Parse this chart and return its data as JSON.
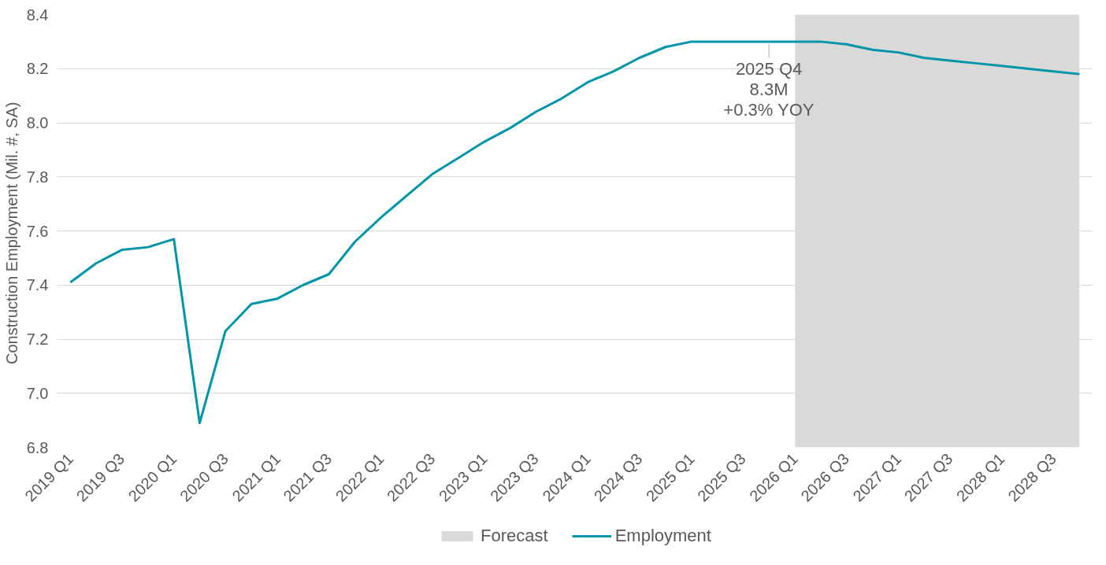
{
  "chart_data": {
    "type": "line",
    "ylabel": "Construction Employment  (Mil. #, SA)",
    "x": [
      "2019-01",
      "2019-04",
      "2019-07",
      "2019-10",
      "2020-01",
      "2020-04",
      "2020-07",
      "2020-10",
      "2021-01",
      "2021-04",
      "2021-07",
      "2021-10",
      "2022-01",
      "2022-04",
      "2022-07",
      "2022-10",
      "2023-01",
      "2023-04",
      "2023-07",
      "2023-10",
      "2024-01",
      "2024-04",
      "2024-07",
      "2024-10",
      "2025-01",
      "2025-04",
      "2025-07",
      "2025-10",
      "2026-01",
      "2026-04",
      "2026-07",
      "2026-10",
      "2027-01",
      "2027-04",
      "2027-07",
      "2027-10",
      "2028-01",
      "2028-04",
      "2028-07",
      "2028-10"
    ],
    "series": [
      {
        "name": "Employment",
        "color": "#0095a9",
        "values": [
          7.41,
          7.48,
          7.53,
          7.54,
          7.57,
          6.89,
          7.23,
          7.33,
          7.35,
          7.4,
          7.44,
          7.56,
          7.65,
          7.73,
          7.81,
          7.87,
          7.93,
          7.98,
          8.04,
          8.09,
          8.15,
          8.19,
          8.24,
          8.28,
          8.3,
          8.3,
          8.3,
          8.3,
          8.3,
          8.3,
          8.29,
          8.27,
          8.26,
          8.24,
          8.23,
          8.22,
          8.21,
          8.2,
          8.19,
          8.18
        ]
      }
    ],
    "xlim": [
      "2018-11-15",
      "2028-11-15"
    ],
    "xticks": [
      {
        "value": "2019-01",
        "label": "2019 Q1"
      },
      {
        "value": "2019-07",
        "label": "2019 Q3"
      },
      {
        "value": "2020-01",
        "label": "2020 Q1"
      },
      {
        "value": "2020-07",
        "label": "2020 Q3"
      },
      {
        "value": "2021-01",
        "label": "2021 Q1"
      },
      {
        "value": "2021-07",
        "label": "2021 Q3"
      },
      {
        "value": "2022-01",
        "label": "2022 Q1"
      },
      {
        "value": "2022-07",
        "label": "2022 Q3"
      },
      {
        "value": "2023-01",
        "label": "2023 Q1"
      },
      {
        "value": "2023-07",
        "label": "2023 Q3"
      },
      {
        "value": "2024-01",
        "label": "2024 Q1"
      },
      {
        "value": "2024-07",
        "label": "2024 Q3"
      },
      {
        "value": "2025-01",
        "label": "2025 Q1"
      },
      {
        "value": "2025-07",
        "label": "2025 Q3"
      },
      {
        "value": "2026-01",
        "label": "2026 Q1"
      },
      {
        "value": "2026-07",
        "label": "2026 Q3"
      },
      {
        "value": "2027-01",
        "label": "2027 Q1"
      },
      {
        "value": "2027-07",
        "label": "2027 Q3"
      },
      {
        "value": "2028-01",
        "label": "2028 Q1"
      },
      {
        "value": "2028-07",
        "label": "2028 Q3"
      }
    ],
    "ylim": [
      6.8,
      8.4
    ],
    "yticks": [
      {
        "value": 6.8,
        "label": "6.8"
      },
      {
        "value": 7.0,
        "label": "7.0"
      },
      {
        "value": 7.2,
        "label": "7.2"
      },
      {
        "value": 7.4,
        "label": "7.4"
      },
      {
        "value": 7.6,
        "label": "7.6"
      },
      {
        "value": 7.8,
        "label": "7.8"
      },
      {
        "value": 8.0,
        "label": "8.0"
      },
      {
        "value": 8.2,
        "label": "8.2"
      },
      {
        "value": 8.4,
        "label": "8.4"
      }
    ],
    "bands": [
      {
        "axis": "x",
        "from": "2026-01",
        "to": "2028-10",
        "label": "Forecast",
        "color": "#d9d9d9"
      }
    ],
    "annotations": [
      {
        "text": "2025 Q4\n8.3M\n+0.3% YOY",
        "x": "2025-10",
        "y": 8.3
      }
    ],
    "grid": "y",
    "legend": "bottom",
    "marker": "none",
    "line_style": "solid"
  }
}
